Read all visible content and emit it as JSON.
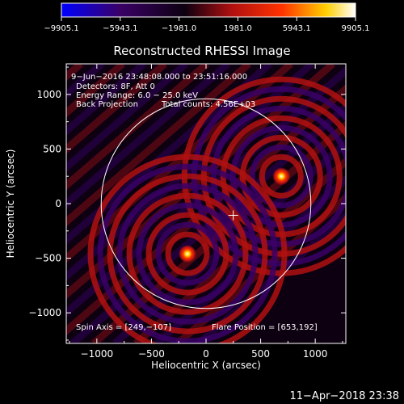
{
  "colors": {
    "background": "#000000",
    "foreground": "#ffffff",
    "colormap": [
      "#0000ff",
      "#3a0066",
      "#0d0010",
      "#b01010",
      "#ff3300",
      "#ffd000",
      "#ffffff"
    ]
  },
  "colorbar": {
    "ticks": [
      "−9905.1",
      "−5943.1",
      "−1981.0",
      "1981.0",
      "5943.1",
      "9905.1"
    ],
    "range": [
      -9905.1,
      9905.1
    ]
  },
  "annotations": {
    "time_range": "9−Jun−2016 23:48:08.000 to 23:51:16.000",
    "detectors": "Detectors: 8F, Att 0",
    "energy": "Energy Range: 6.0 − 25.0 keV",
    "method": "Back Projection",
    "counts": "Total counts: 4.56E+03",
    "spin_axis": "Spin Axis = [249,−107]",
    "flare_position": "Flare Position = [653,192]"
  },
  "footer": {
    "timestamp": "11−Apr−2018 23:38"
  },
  "chart_data": {
    "type": "heatmap",
    "title": "Reconstructed RHESSI Image",
    "xlabel": "Heliocentric X (arcsec)",
    "ylabel": "Heliocentric Y (arcsec)",
    "xlim": [
      -1280,
      1280
    ],
    "ylim": [
      -1280,
      1280
    ],
    "xticks": [
      -1000,
      -500,
      0,
      500,
      1000
    ],
    "yticks": [
      -1000,
      -500,
      0,
      500,
      1000
    ],
    "xtick_labels": [
      "−1000",
      "−500",
      "0",
      "500",
      "1000"
    ],
    "ytick_labels": [
      "−1000",
      "−500",
      "0",
      "500",
      "1000"
    ],
    "solar_limb": {
      "center": [
        0,
        0
      ],
      "radius": 960
    },
    "sources": [
      {
        "x": 690,
        "y": 250,
        "peak": 9905
      },
      {
        "x": -170,
        "y": -460,
        "peak": 9905
      }
    ],
    "spin_axis": [
      249,
      -107
    ],
    "flare_position": [
      653,
      192
    ]
  }
}
